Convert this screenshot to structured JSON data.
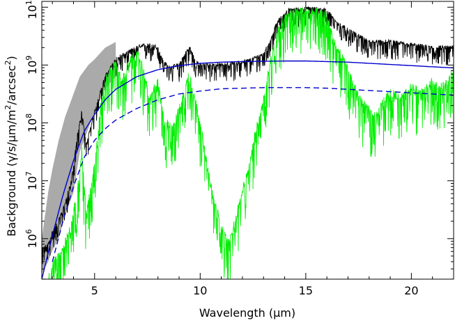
{
  "chart_data": {
    "type": "line",
    "title": "",
    "xlabel": "Wavelength (μm)",
    "ylabel": "Background (γ/s/μm/m²/arcsec²)",
    "ylabel_parts": [
      "Background (γ/s/μm/m",
      "2",
      "/arcsec",
      "2",
      ")"
    ],
    "xlim": [
      2.5,
      22
    ],
    "ylim_log10": [
      5.3,
      10.1
    ],
    "y_scale": "log",
    "x_ticks": [
      5,
      10,
      15,
      20
    ],
    "x_tick_labels": [
      "5",
      "10",
      "15",
      "20"
    ],
    "y_ticks_log10": [
      6,
      7,
      8,
      9,
      10
    ],
    "y_tick_base": "10",
    "y_tick_exponents": [
      "6",
      "7",
      "8",
      "9",
      "10"
    ],
    "grid": false,
    "legend": "none",
    "series": [
      {
        "color": "#aaaaaa",
        "style": "band",
        "x": [
          2.5,
          2.8,
          3.0,
          3.3,
          3.6,
          4.0,
          4.3,
          4.7,
          5.0,
          5.5,
          6.0
        ],
        "upper_log10": [
          6.0,
          6.8,
          7.2,
          7.7,
          8.1,
          8.5,
          8.8,
          9.0,
          9.1,
          9.3,
          9.4
        ],
        "lower_log10": [
          5.4,
          5.6,
          5.8,
          6.0,
          6.4,
          6.8,
          7.5,
          7.9,
          8.2,
          8.6,
          8.8
        ]
      },
      {
        "color": "#000000",
        "style": "noisy",
        "x": [
          2.5,
          2.8,
          3.0,
          3.3,
          3.6,
          3.9,
          4.2,
          4.4,
          4.6,
          4.8,
          5.0,
          5.5,
          6.0,
          6.5,
          7.0,
          7.5,
          8.0,
          8.2,
          8.5,
          9.0,
          9.3,
          9.5,
          9.8,
          10.0,
          11.0,
          12.0,
          12.5,
          13.0,
          13.3,
          13.6,
          13.9,
          14.2,
          15.0,
          15.5,
          16.0,
          16.3,
          16.6,
          17.0,
          17.5,
          18.0,
          19.0,
          20.0,
          21.0,
          22.0
        ],
        "y_log10": [
          5.8,
          5.9,
          6.1,
          6.3,
          6.6,
          7.0,
          7.8,
          8.2,
          7.6,
          7.9,
          8.2,
          8.8,
          9.1,
          9.2,
          9.3,
          9.35,
          9.3,
          9.1,
          8.95,
          9.0,
          9.2,
          9.3,
          9.05,
          9.0,
          9.0,
          9.05,
          9.1,
          9.2,
          9.4,
          9.7,
          9.85,
          9.95,
          9.97,
          9.97,
          9.95,
          9.8,
          9.7,
          9.6,
          9.5,
          9.4,
          9.4,
          9.35,
          9.3,
          9.3
        ],
        "noise": 0.14
      },
      {
        "color": "#00ee00",
        "style": "noisy",
        "x": [
          2.5,
          2.8,
          3.0,
          3.3,
          3.6,
          3.9,
          4.2,
          4.4,
          4.6,
          4.8,
          5.0,
          5.3,
          5.6,
          6.0,
          6.3,
          6.6,
          7.0,
          7.3,
          7.6,
          8.0,
          8.3,
          8.6,
          9.0,
          9.3,
          9.5,
          9.8,
          10.0,
          10.3,
          10.6,
          11.0,
          11.3,
          11.6,
          12.0,
          12.3,
          12.6,
          13.0,
          13.3,
          13.6,
          14.0,
          14.5,
          15.0,
          15.5,
          16.0,
          16.3,
          16.6,
          17.0,
          17.3,
          17.6,
          18.0,
          18.3,
          18.6,
          19.0,
          19.5,
          20.0,
          20.5,
          21.0,
          21.5,
          22.0
        ],
        "y_log10": [
          5.2,
          5.3,
          5.5,
          5.7,
          5.9,
          6.2,
          6.9,
          7.5,
          6.4,
          6.8,
          7.3,
          8.3,
          8.8,
          9.0,
          8.7,
          9.0,
          9.2,
          8.9,
          8.4,
          8.7,
          8.0,
          7.9,
          8.2,
          8.6,
          8.9,
          8.3,
          8.0,
          7.3,
          6.7,
          6.2,
          5.9,
          6.2,
          6.8,
          7.2,
          7.8,
          8.4,
          9.0,
          9.5,
          9.82,
          9.9,
          9.9,
          9.9,
          9.85,
          9.4,
          9.2,
          8.9,
          8.6,
          8.4,
          8.2,
          8.1,
          8.3,
          8.5,
          8.4,
          8.6,
          8.5,
          8.7,
          8.6,
          8.9
        ],
        "noise": 0.35
      },
      {
        "color": "#0000cc",
        "style": "solid",
        "x": [
          2.5,
          3.0,
          3.5,
          4.0,
          4.5,
          5.0,
          5.5,
          6.0,
          7.0,
          8.0,
          9.0,
          10.0,
          11.0,
          12.0,
          13.0,
          14.0,
          15.0,
          16.0,
          17.0,
          18.0,
          19.0,
          20.0,
          21.0,
          22.0
        ],
        "y_log10": [
          5.3,
          6.05,
          6.75,
          7.35,
          7.85,
          8.15,
          8.4,
          8.58,
          8.8,
          8.92,
          8.99,
          9.03,
          9.05,
          9.06,
          9.065,
          9.07,
          9.07,
          9.06,
          9.05,
          9.03,
          9.01,
          8.99,
          8.97,
          8.95
        ]
      },
      {
        "color": "#0000cc",
        "style": "dashed",
        "x": [
          3.0,
          3.5,
          4.0,
          4.5,
          5.0,
          5.5,
          6.0,
          7.0,
          8.0,
          9.0,
          10.0,
          11.0,
          12.0,
          13.0,
          14.0,
          15.0,
          16.0,
          17.0,
          18.0,
          19.0,
          20.0,
          21.0,
          22.0
        ],
        "y_log10": [
          5.6,
          6.3,
          6.9,
          7.4,
          7.7,
          7.9,
          8.05,
          8.25,
          8.4,
          8.5,
          8.55,
          8.59,
          8.6,
          8.61,
          8.61,
          8.61,
          8.6,
          8.58,
          8.56,
          8.54,
          8.52,
          8.5,
          8.48
        ]
      }
    ]
  }
}
